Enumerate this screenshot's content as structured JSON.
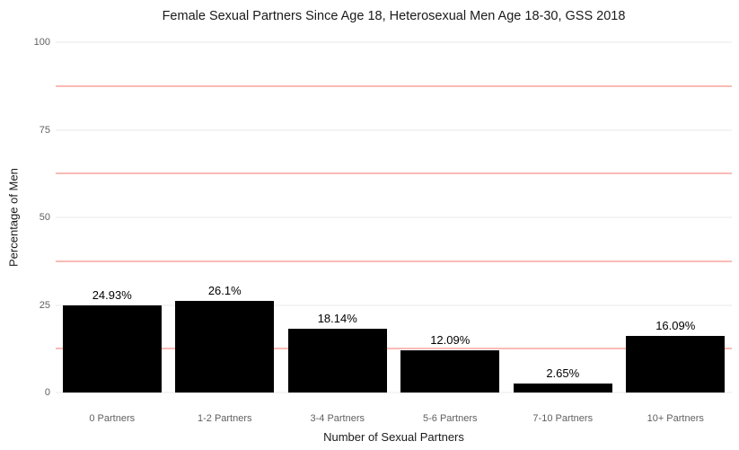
{
  "title": "Female Sexual Partners Since Age 18, Heterosexual Men Age 18-30, GSS 2018",
  "colors": {
    "background": "#ffffff",
    "bar": "#000000",
    "major_gridline": "#e9e9e9",
    "minor_gridline": "#f4756b",
    "axis_tick_text": "#606060",
    "title_text": "#1a1a1a"
  },
  "chart_data": {
    "type": "bar",
    "title": "Female Sexual Partners Since Age 18, Heterosexual Men Age 18-30, GSS 2018",
    "xlabel": "Number of Sexual Partners",
    "ylabel": "Percentage of Men",
    "categories": [
      "0 Partners",
      "1-2 Partners",
      "3-4 Partners",
      "5-6 Partners",
      "7-10 Partners",
      "10+ Partners"
    ],
    "values": [
      24.93,
      26.1,
      18.14,
      12.09,
      2.65,
      16.09
    ],
    "bar_labels": [
      "24.93%",
      "26.1%",
      "18.14%",
      "12.09%",
      "2.65%",
      "16.09%"
    ],
    "ylim": [
      0,
      100
    ],
    "y_major_ticks": [
      0,
      25,
      50,
      75,
      100
    ],
    "y_minor_gridlines": [
      12.5,
      37.5,
      62.5,
      87.5
    ],
    "grid": true,
    "legend_position": "none",
    "bar_color": "#000000",
    "minor_gridline_color": "#f4756b",
    "major_gridline_color": "#e9e9e9"
  }
}
